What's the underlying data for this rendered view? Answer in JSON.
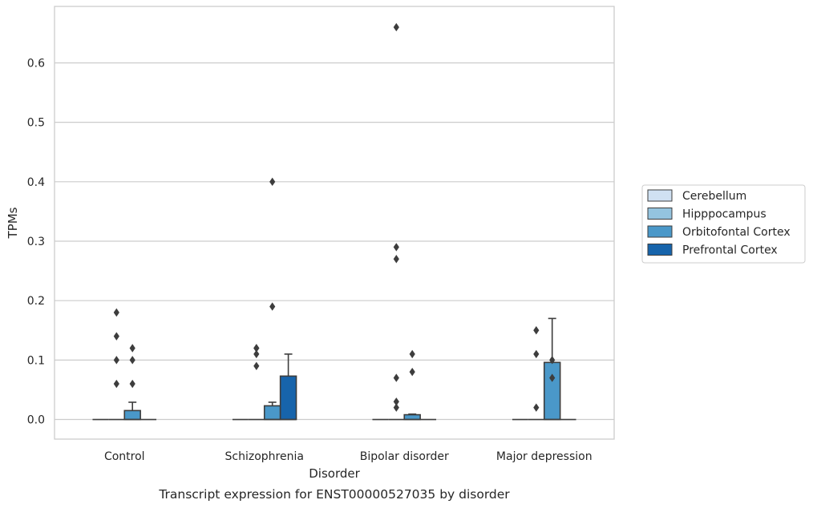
{
  "caption": "Transcript expression for ENST00000527035 by disorder",
  "chart_data": {
    "type": "box",
    "xlabel": "Disorder",
    "ylabel": "TPMs",
    "ylim": [
      -0.033,
      0.695
    ],
    "yticks": [
      "0.0",
      "0.1",
      "0.2",
      "0.3",
      "0.4",
      "0.5",
      "0.6"
    ],
    "yticks_values": [
      0,
      0.1,
      0.2,
      0.3,
      0.4,
      0.5,
      0.6
    ],
    "grid": "horizontal",
    "legend_position": "right",
    "categories": [
      "Control",
      "Schizophrenia",
      "Bipolar disorder",
      "Major depression"
    ],
    "series": [
      {
        "name": "Cerebellum",
        "color": "#d0e1f2",
        "boxes": [
          {
            "q1": 0,
            "median": 0,
            "q3": 0,
            "whislo": 0,
            "whishi": 0,
            "outliers": []
          },
          {
            "q1": 0,
            "median": 0,
            "q3": 0,
            "whislo": 0,
            "whishi": 0,
            "outliers": []
          },
          {
            "q1": 0,
            "median": 0,
            "q3": 0,
            "whislo": 0,
            "whishi": 0,
            "outliers": []
          },
          {
            "q1": 0,
            "median": 0,
            "q3": 0,
            "whislo": 0,
            "whishi": 0,
            "outliers": []
          }
        ]
      },
      {
        "name": "Hipppocampus",
        "color": "#94c4df",
        "boxes": [
          {
            "q1": 0,
            "median": 0,
            "q3": 0,
            "whislo": 0,
            "whishi": 0,
            "outliers": [
              0.14,
              0.06,
              0.1,
              0.18
            ]
          },
          {
            "q1": 0,
            "median": 0,
            "q3": 0,
            "whislo": 0,
            "whishi": 0,
            "outliers": [
              0.12,
              0.12,
              0.11,
              0.09
            ]
          },
          {
            "q1": 0,
            "median": 0,
            "q3": 0,
            "whislo": 0,
            "whishi": 0,
            "outliers": [
              0.07,
              0.29,
              0.27,
              0.66,
              0.03,
              0.02
            ]
          },
          {
            "q1": 0,
            "median": 0,
            "q3": 0,
            "whislo": 0,
            "whishi": 0,
            "outliers": [
              0.15,
              0.11,
              0.02
            ]
          }
        ]
      },
      {
        "name": "Orbitofontal Cortex",
        "color": "#4a98c9",
        "boxes": [
          {
            "q1": 0,
            "median": 0,
            "q3": 0.015,
            "whislo": 0,
            "whishi": 0.029,
            "outliers": [
              0.12,
              0.1,
              0.06
            ]
          },
          {
            "q1": 0,
            "median": 0,
            "q3": 0.023,
            "whislo": 0,
            "whishi": 0.029,
            "outliers": [
              0.4,
              0.19
            ]
          },
          {
            "q1": 0,
            "median": 0,
            "q3": 0.008,
            "whislo": 0,
            "whishi": 0.009,
            "outliers": [
              0.11,
              0.08
            ]
          },
          {
            "q1": 0,
            "median": 0,
            "q3": 0.096,
            "whislo": 0,
            "whishi": 0.17,
            "outliers": [
              0.1,
              0.07
            ]
          }
        ]
      },
      {
        "name": "Prefrontal Cortex",
        "color": "#1764ab",
        "boxes": [
          {
            "q1": 0,
            "median": 0,
            "q3": 0,
            "whislo": 0,
            "whishi": 0,
            "outliers": []
          },
          {
            "q1": 0,
            "median": 0,
            "q3": 0.073,
            "whislo": 0,
            "whishi": 0.11,
            "outliers": []
          },
          {
            "q1": 0,
            "median": 0,
            "q3": 0,
            "whislo": 0,
            "whishi": 0,
            "outliers": []
          },
          {
            "q1": 0,
            "median": 0,
            "q3": 0,
            "whislo": 0,
            "whishi": 0,
            "outliers": []
          }
        ]
      }
    ]
  }
}
